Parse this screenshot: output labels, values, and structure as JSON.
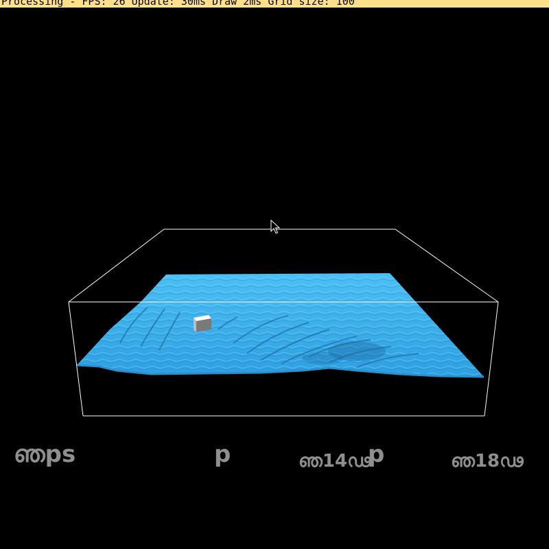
{
  "window": {
    "title": "Processing - FPS: 26 Update: 30ms Draw 2ms Grid size: 100"
  },
  "scene": {
    "water_color": "#3aaeea",
    "water_shadow_color": "#1d6ea8",
    "box_color": "#ffffff",
    "floating_object": "cube",
    "cube_color": "#e8e8e8"
  },
  "hud": {
    "labels": [
      "ഞps",
      "p",
      "ഞ14ഢ",
      "p",
      "ഞ18ഢ"
    ]
  },
  "cursor": {
    "icon": "arrow-cursor-icon"
  }
}
